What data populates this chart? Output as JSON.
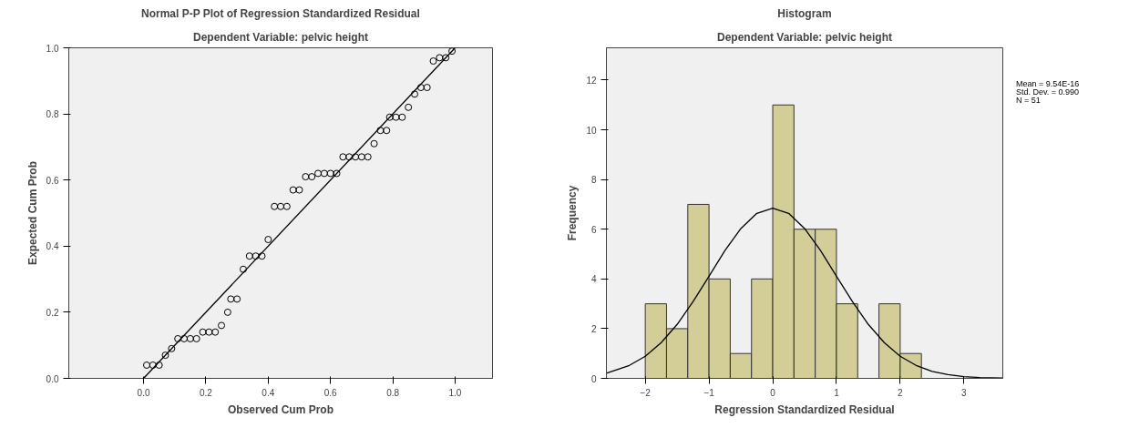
{
  "chart_data": [
    {
      "type": "scatter",
      "title": "Normal P-P Plot of Regression Standardized Residual",
      "subtitle": "Dependent Variable: pelvic height",
      "xlabel": "Observed Cum Prob",
      "ylabel": "Expected Cum Prob",
      "grid": false,
      "xlim": [
        -0.24,
        1.12
      ],
      "ylim": [
        0,
        1
      ],
      "xticks": [
        {
          "value": 0,
          "label": "0.0"
        },
        {
          "value": 0.2,
          "label": "0.2"
        },
        {
          "value": 0.4,
          "label": "0.4"
        },
        {
          "value": 0.6,
          "label": "0.6"
        },
        {
          "value": 0.8,
          "label": "0.8"
        },
        {
          "value": 1,
          "label": "1.0"
        }
      ],
      "yticks": [
        {
          "value": 0,
          "label": "0.0"
        },
        {
          "value": 0.2,
          "label": "0.2"
        },
        {
          "value": 0.4,
          "label": "0.4"
        },
        {
          "value": 0.6,
          "label": "0.6"
        },
        {
          "value": 0.8,
          "label": "0.8"
        },
        {
          "value": 1,
          "label": "1.0"
        }
      ],
      "series": [
        {
          "type": "scatter",
          "marker": "circle",
          "color": "#000000",
          "x": [
            0.01,
            0.03,
            0.05,
            0.07,
            0.09,
            0.11,
            0.13,
            0.15,
            0.17,
            0.19,
            0.21,
            0.23,
            0.25,
            0.27,
            0.28,
            0.3,
            0.32,
            0.34,
            0.36,
            0.38,
            0.4,
            0.42,
            0.44,
            0.46,
            0.48,
            0.5,
            0.52,
            0.54,
            0.56,
            0.58,
            0.6,
            0.62,
            0.64,
            0.66,
            0.68,
            0.7,
            0.72,
            0.74,
            0.76,
            0.78,
            0.79,
            0.81,
            0.83,
            0.85,
            0.87,
            0.89,
            0.91,
            0.93,
            0.95,
            0.97,
            0.99
          ],
          "values": [
            0.04,
            0.04,
            0.04,
            0.07,
            0.09,
            0.12,
            0.12,
            0.12,
            0.12,
            0.14,
            0.14,
            0.14,
            0.16,
            0.2,
            0.24,
            0.24,
            0.33,
            0.37,
            0.37,
            0.37,
            0.42,
            0.52,
            0.52,
            0.52,
            0.57,
            0.57,
            0.61,
            0.61,
            0.62,
            0.62,
            0.62,
            0.62,
            0.67,
            0.67,
            0.67,
            0.67,
            0.67,
            0.71,
            0.75,
            0.75,
            0.79,
            0.79,
            0.79,
            0.82,
            0.86,
            0.88,
            0.88,
            0.96,
            0.97,
            0.97,
            0.99
          ]
        },
        {
          "type": "line",
          "color": "#000000",
          "x": [
            0,
            1
          ],
          "values": [
            0,
            1
          ]
        }
      ]
    },
    {
      "type": "histogram",
      "title": "Histogram",
      "subtitle": "Dependent Variable: pelvic height",
      "xlabel": "Regression Standardized Residual",
      "ylabel": "Frequency",
      "grid": false,
      "annotations": [
        "Mean = 9.54E-16",
        "Std. Dev. = 0.990",
        "N = 51"
      ],
      "xlim": [
        -2.61,
        3.61
      ],
      "ylim": [
        0,
        13.3
      ],
      "xticks": [
        -2,
        -1,
        0,
        1,
        2,
        3
      ],
      "yticks": [
        0,
        2,
        4,
        6,
        8,
        10,
        12
      ],
      "color": "#d3ce97",
      "bins": [
        -2,
        -1.667,
        -1.333,
        -1,
        -0.667,
        -0.333,
        0,
        0.333,
        0.667,
        1,
        1.333,
        1.667,
        2,
        2.333
      ],
      "values": [
        3,
        2,
        7,
        4,
        1,
        4,
        11,
        6,
        6,
        3,
        0,
        3,
        1
      ],
      "series": [
        {
          "type": "line",
          "color": "#000000",
          "x": [
            -2.61,
            -2.25,
            -2,
            -1.75,
            -1.5,
            -1.25,
            -1,
            -0.75,
            -0.5,
            -0.25,
            0,
            0.25,
            0.5,
            0.75,
            1,
            1.25,
            1.5,
            1.75,
            2,
            2.25,
            2.5,
            2.75,
            3,
            3.25,
            3.61
          ],
          "values": [
            0.21,
            0.52,
            0.89,
            1.44,
            2.17,
            3.09,
            4.11,
            5.14,
            6.03,
            6.64,
            6.85,
            6.64,
            6.03,
            5.14,
            4.11,
            3.09,
            2.17,
            1.44,
            0.89,
            0.52,
            0.28,
            0.15,
            0.07,
            0.03,
            0.01
          ]
        }
      ]
    }
  ]
}
